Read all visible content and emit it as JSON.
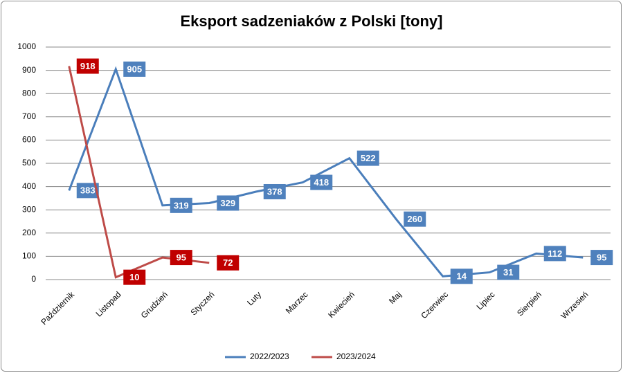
{
  "chart_data": {
    "type": "line",
    "title": "Eksport sadzeniaków z Polski [tony]",
    "categories": [
      "Październik",
      "Listopad",
      "Grudzień",
      "Styczeń",
      "Luty",
      "Marzec",
      "Kwiecień",
      "Maj",
      "Czerwiec",
      "Lipiec",
      "Sierpień",
      "Wrzesień"
    ],
    "series": [
      {
        "name": "2022/2023",
        "color": "#4a7ebb",
        "label_color": "#4f81bd",
        "values": [
          383,
          905,
          319,
          329,
          378,
          418,
          522,
          260,
          14,
          31,
          112,
          95
        ]
      },
      {
        "name": "2023/2024",
        "color": "#be4b48",
        "label_color": "#c00000",
        "values": [
          918,
          10,
          95,
          72,
          null,
          null,
          null,
          null,
          null,
          null,
          null,
          null
        ]
      }
    ],
    "ylim": [
      0,
      1000
    ],
    "yticks": [
      0,
      100,
      200,
      300,
      400,
      500,
      600,
      700,
      800,
      900,
      1000
    ],
    "grid": true,
    "legend": "bottom"
  }
}
